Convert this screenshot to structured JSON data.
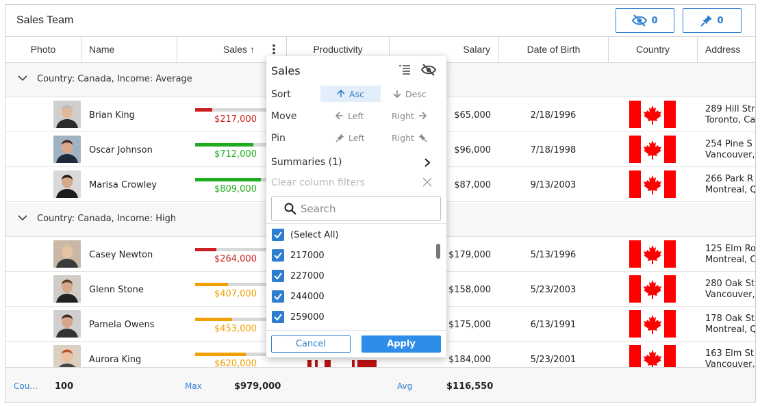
{
  "grid": {
    "title": "Sales Team",
    "hidden_columns_count": "0",
    "pinned_columns_count": "0"
  },
  "columns": [
    "Photo",
    "Name",
    "Sales",
    "Productivity",
    "Salary",
    "Date of Birth",
    "Country",
    "Address"
  ],
  "sort_arrow": "↑",
  "groups": [
    {
      "label": "Country: Canada, Income: Average"
    },
    {
      "label": "Country: Canada, Income: High"
    }
  ],
  "rows": [
    {
      "name": "Brian King",
      "sales": "$217,000",
      "sales_pct": 0.23,
      "sales_color": "#cc1f1f",
      "salary": "$65,000",
      "dob": "2/18/1996",
      "addr1": "289 Hill Str",
      "addr2": "Toronto, Ca"
    },
    {
      "name": "Oscar Johnson",
      "sales": "$712,000",
      "sales_pct": 0.77,
      "sales_color": "#1fad1f",
      "salary": "$96,000",
      "dob": "7/18/1998",
      "addr1": "254 Pine S",
      "addr2": "Vancouver,"
    },
    {
      "name": "Marisa Crowley",
      "sales": "$809,000",
      "sales_pct": 0.87,
      "sales_color": "#1fad1f",
      "salary": "$87,000",
      "dob": "9/13/2003",
      "addr1": "266 Park R",
      "addr2": "Montreal, Q"
    },
    {
      "name": "Casey Newton",
      "sales": "$264,000",
      "sales_pct": 0.28,
      "sales_color": "#cc1f1f",
      "salary": "$179,000",
      "dob": "5/13/1996",
      "addr1": "125 Elm Ro",
      "addr2": "Montreal, C"
    },
    {
      "name": "Glenn Stone",
      "sales": "$407,000",
      "sales_pct": 0.44,
      "sales_color": "#f0a000",
      "salary": "$158,000",
      "dob": "5/23/2003",
      "addr1": "280 Oak St",
      "addr2": "Vancouver,"
    },
    {
      "name": "Pamela Owens",
      "sales": "$453,000",
      "sales_pct": 0.49,
      "sales_color": "#f0a000",
      "salary": "$175,000",
      "dob": "6/13/1991",
      "addr1": "178 Oak St",
      "addr2": "Montreal, Q"
    },
    {
      "name": "Aurora King",
      "sales": "$620,000",
      "sales_pct": 0.67,
      "sales_color": "#f0a000",
      "salary": "$184,000",
      "dob": "5/23/2001",
      "addr1": "163 Elm St",
      "addr2": "Vancouver,"
    }
  ],
  "footer": {
    "count_label": "Cou...",
    "count_value": "100",
    "max_label": "Max",
    "max_value": "$979,000",
    "avg_label": "Avg",
    "avg_value": "$116,550"
  },
  "menu": {
    "title": "Sales",
    "sort_label": "Sort",
    "sort_asc": "Asc",
    "sort_desc": "Desc",
    "move_label": "Move",
    "move_left": "Left",
    "move_right": "Right",
    "pin_label": "Pin",
    "pin_left": "Left",
    "pin_right": "Right",
    "summaries": "Summaries (1)",
    "clear_filters": "Clear column filters",
    "search_placeholder": "Search",
    "filter_items": [
      "(Select All)",
      "217000",
      "227000",
      "244000",
      "259000"
    ],
    "cancel": "Cancel",
    "apply": "Apply"
  },
  "colors": {
    "accent": "#2d7ed0",
    "flag_red": "#ff0000"
  }
}
